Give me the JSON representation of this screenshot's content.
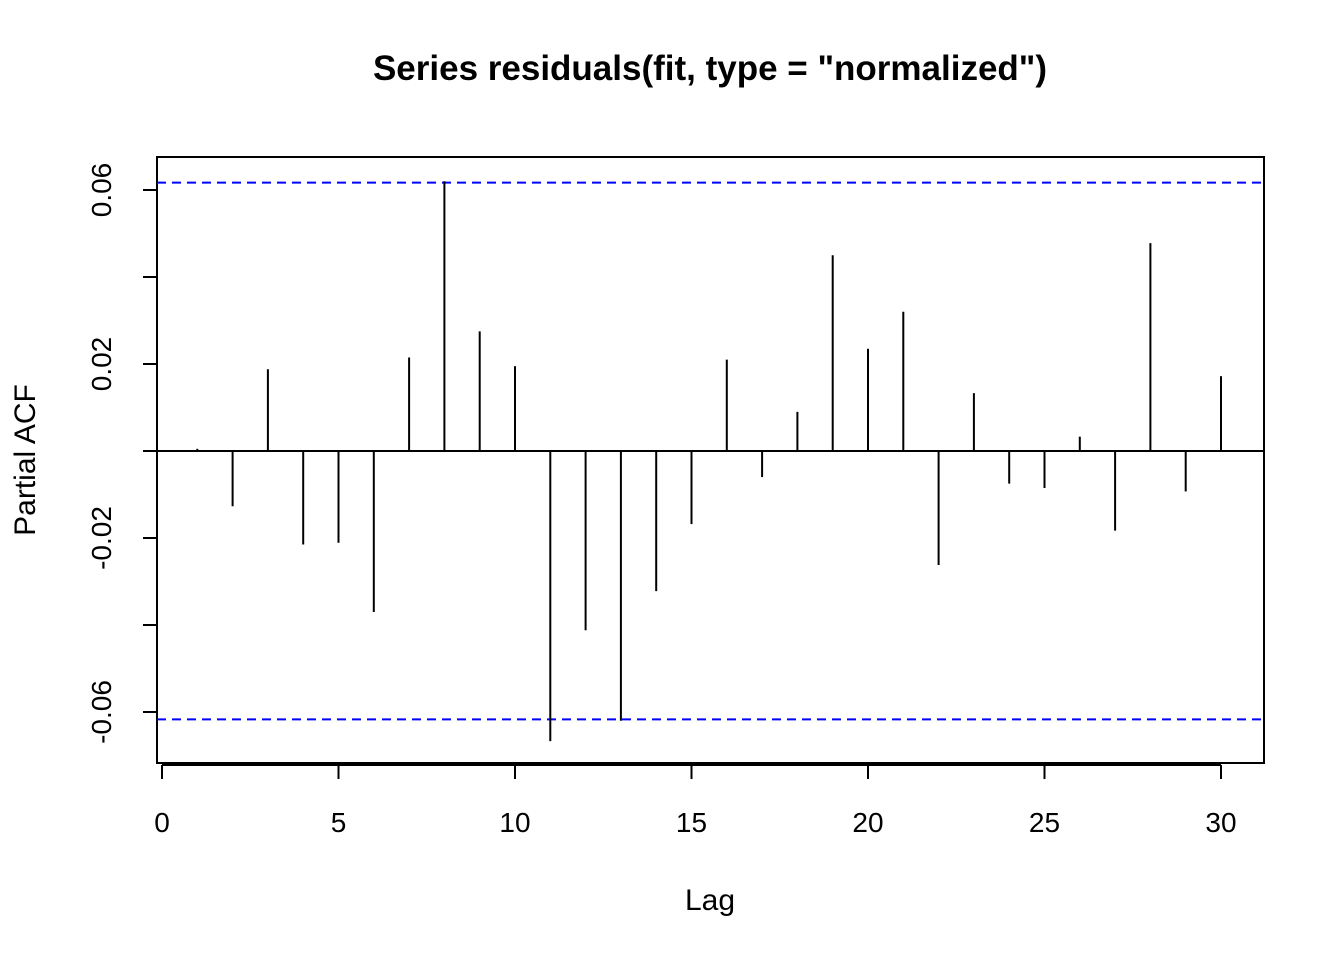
{
  "chart_data": {
    "type": "bar",
    "title": "Series  residuals(fit, type = \"normalized\")",
    "xlabel": "Lag",
    "ylabel": "Partial ACF",
    "xlim": [
      0,
      31
    ],
    "ylim": [
      -0.07,
      0.068
    ],
    "x_ticks": [
      0,
      5,
      10,
      15,
      20,
      25,
      30
    ],
    "x_tick_labels": [
      "0",
      "5",
      "10",
      "15",
      "20",
      "25",
      "30"
    ],
    "y_ticks": [
      -0.06,
      -0.04,
      -0.02,
      0.0,
      0.02,
      0.04,
      0.06
    ],
    "y_tick_labels": [
      "-0.06",
      "",
      "-0.02",
      "",
      "0.02",
      "",
      "0.06"
    ],
    "confidence_bounds": [
      0.0617,
      -0.0617
    ],
    "bound_color": "#0000ff",
    "lags": [
      1,
      2,
      3,
      4,
      5,
      6,
      7,
      8,
      9,
      10,
      11,
      12,
      13,
      14,
      15,
      16,
      17,
      18,
      19,
      20,
      21,
      22,
      23,
      24,
      25,
      26,
      27,
      28,
      29,
      30
    ],
    "values": [
      0.0005,
      -0.0127,
      0.0188,
      -0.0215,
      -0.0211,
      -0.037,
      0.0215,
      0.062,
      0.0275,
      0.0195,
      -0.0667,
      -0.0412,
      -0.062,
      -0.0322,
      -0.0168,
      0.021,
      -0.006,
      0.009,
      0.045,
      0.0235,
      0.032,
      -0.0262,
      0.0133,
      -0.0075,
      -0.0085,
      0.0033,
      -0.0183,
      0.0478,
      -0.0093,
      0.0172
    ],
    "grid": false,
    "legend": "none"
  }
}
